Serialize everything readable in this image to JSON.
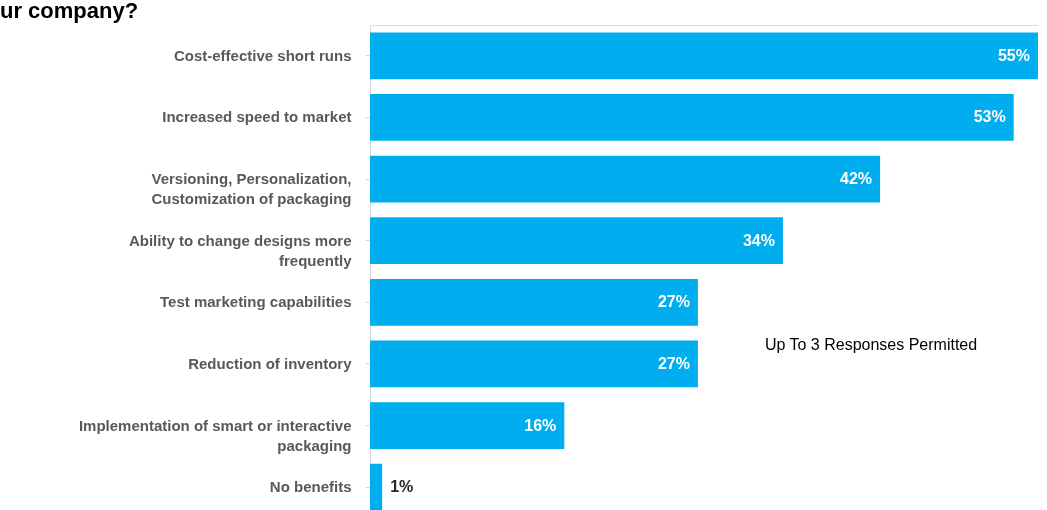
{
  "chart_data": {
    "type": "bar",
    "orientation": "horizontal",
    "title": "ur company?",
    "categories": [
      "Cost-effective short runs",
      "Increased speed to market",
      "Versioning, Personalization, Customization of packaging",
      "Ability to change designs more frequently",
      "Test marketing capabilities",
      "Reduction of inventory",
      "Implementation of smart or interactive packaging",
      "No benefits"
    ],
    "values": [
      55,
      53,
      42,
      34,
      27,
      27,
      16,
      1
    ],
    "color": "#00adef",
    "value_labels": [
      "55%",
      "53%",
      "42%",
      "34%",
      "27%",
      "27%",
      "16%",
      "1%"
    ],
    "annotations": [
      "Up To 3 Responses Permitted"
    ]
  }
}
